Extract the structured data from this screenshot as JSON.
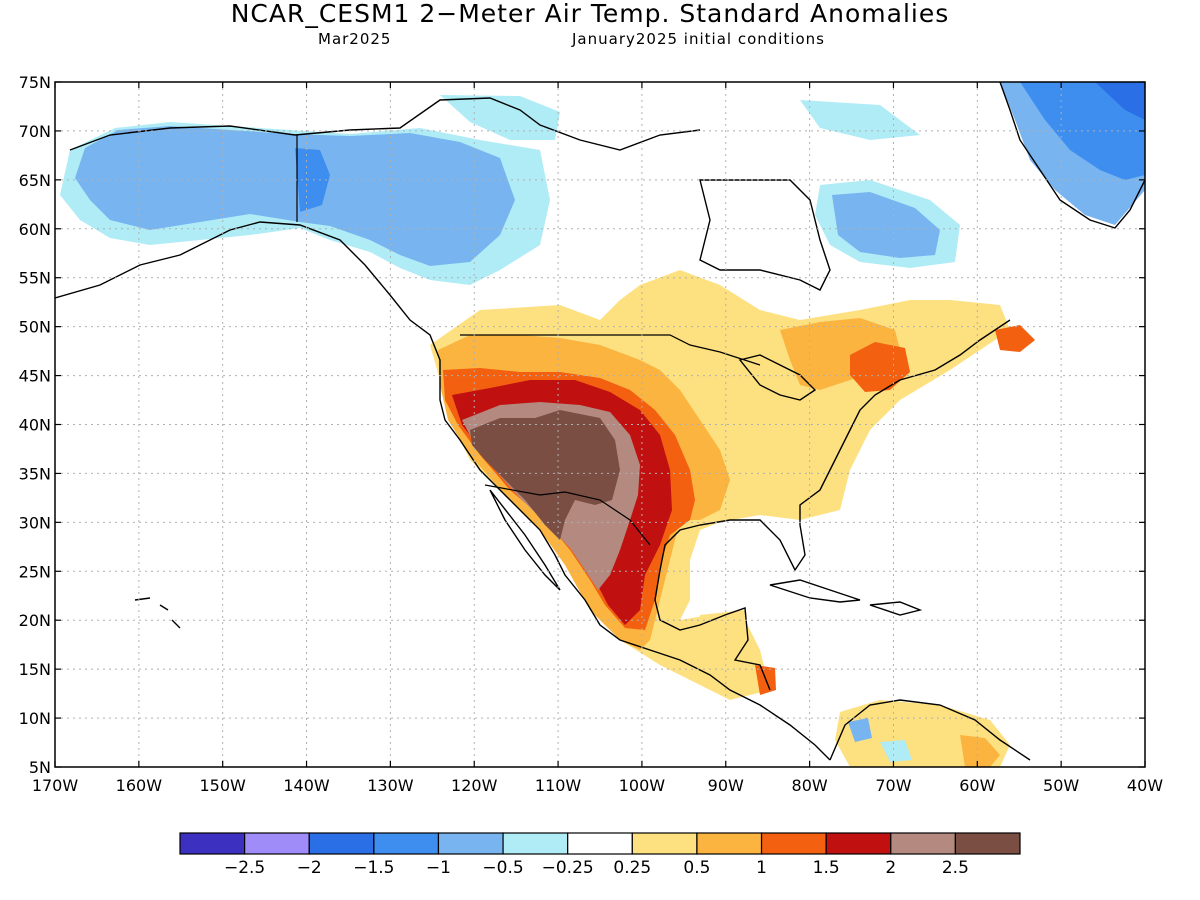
{
  "header": {
    "title": "NCAR_CESM1 2−Meter Air Temp. Standard Anomalies",
    "valid_month": "Mar2025",
    "init_text": "January2025 initial conditions"
  },
  "map": {
    "lon_labels": [
      "170W",
      "160W",
      "150W",
      "140W",
      "130W",
      "120W",
      "110W",
      "100W",
      "90W",
      "80W",
      "70W",
      "60W",
      "50W",
      "40W"
    ],
    "lat_labels": [
      "75N",
      "70N",
      "65N",
      "60N",
      "55N",
      "50N",
      "45N",
      "40N",
      "35N",
      "30N",
      "25N",
      "20N",
      "15N",
      "10N",
      "5N"
    ],
    "lon_range": [
      -170,
      -40
    ],
    "lat_range": [
      5,
      75
    ],
    "grid": "dotted"
  },
  "legend": {
    "colors": [
      "#3b30c0",
      "#a08cf8",
      "#2a6fe6",
      "#3e8ef0",
      "#78b4f0",
      "#b0ecf6",
      "#ffffff",
      "#fde080",
      "#fbb440",
      "#f26010",
      "#c01010",
      "#b48a80",
      "#7a4e42"
    ],
    "labels": [
      "−2.5",
      "−2",
      "−1.5",
      "−1",
      "−0.5",
      "−0.25",
      "0.25",
      "0.5",
      "1",
      "1.5",
      "2",
      "2.5"
    ]
  },
  "regions": [
    {
      "level": "-1",
      "color": "#78b4f0",
      "label": "Alaska / NW Canada"
    },
    {
      "level": "-1.5",
      "color": "#3e8ef0",
      "label": "Greenland"
    },
    {
      "level": "2.5+",
      "color": "#7a4e42",
      "label": "US Southwest"
    },
    {
      "level": "0.5",
      "color": "#fde080",
      "label": "Eastern US"
    }
  ]
}
